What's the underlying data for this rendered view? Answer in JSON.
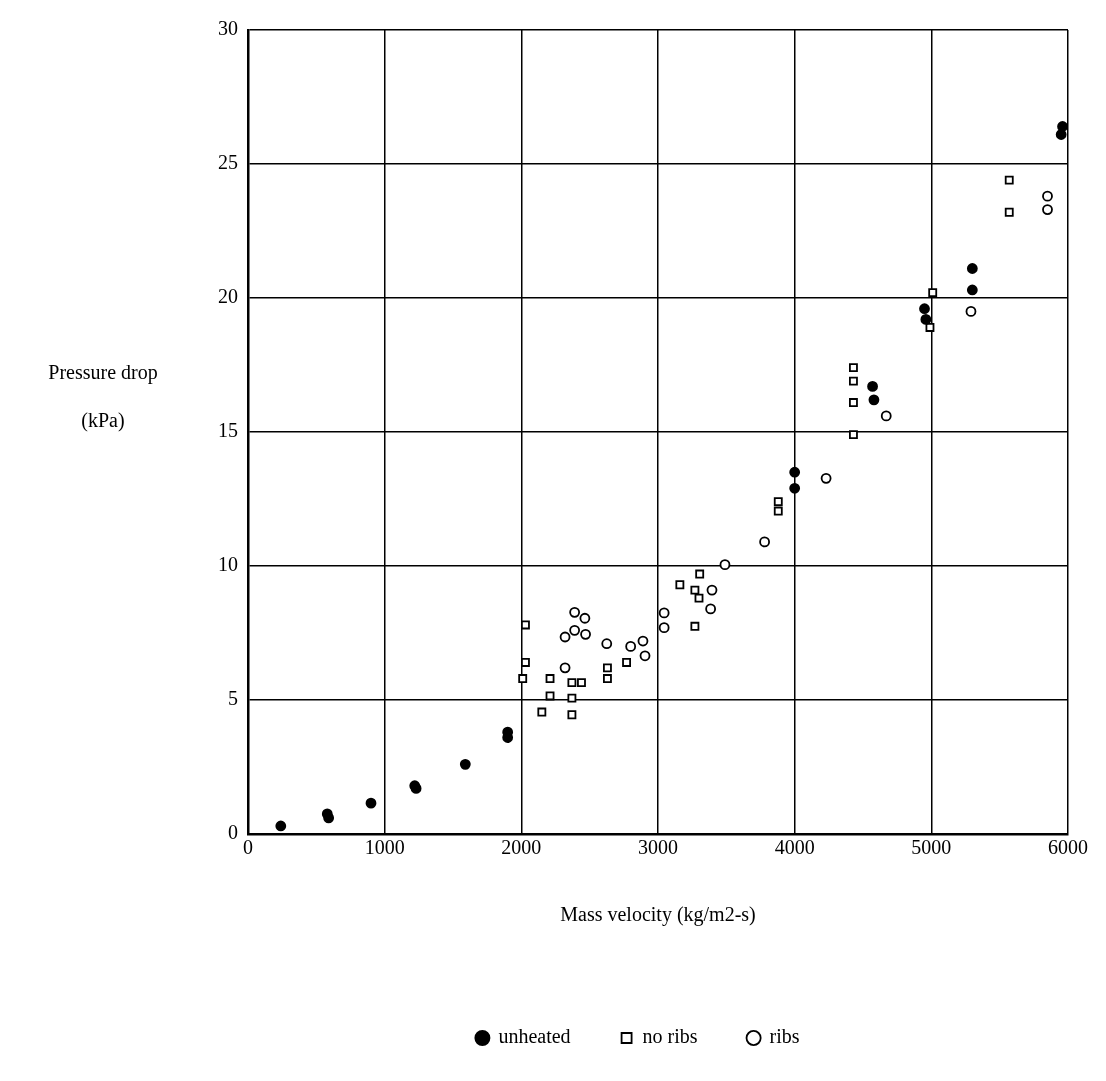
{
  "chart_data": {
    "type": "scatter",
    "xlabel": "Mass velocity (kg/m2-s)",
    "ylabel": "Pressure drop\n(kPa)",
    "xlim": [
      0,
      6000
    ],
    "xticks": [
      0,
      1000,
      2000,
      3000,
      4000,
      5000,
      6000
    ],
    "ylim": [
      0,
      30
    ],
    "yticks": [
      0,
      5,
      10,
      15,
      20,
      25,
      30
    ],
    "grid": true,
    "legend": "bottom",
    "series": [
      {
        "name": "unheated",
        "color": "#000000",
        "marker": "circle",
        "x": [
          240,
          580,
          590,
          900,
          1220,
          1230,
          1590,
          1900,
          1900,
          4000,
          4000,
          4570,
          4580,
          4950,
          4960,
          5300,
          5300,
          5960,
          5950
        ],
        "values": [
          0.3,
          0.75,
          0.6,
          1.15,
          1.8,
          1.7,
          2.6,
          3.8,
          3.6,
          13.5,
          12.9,
          16.7,
          16.2,
          19.6,
          19.2,
          21.1,
          20.3,
          26.4,
          26.1
        ]
      },
      {
        "name": "no ribs",
        "color": "#000000",
        "marker": "square",
        "x": [
          2030,
          2030,
          2010,
          2210,
          2210,
          2150,
          2370,
          2370,
          2440,
          2370,
          2630,
          2630,
          2770,
          3160,
          3305,
          3300,
          3270,
          3270,
          3880,
          3880,
          4430,
          4430,
          4430,
          4430,
          5010,
          4990,
          5570,
          5570
        ],
        "values": [
          7.8,
          6.4,
          5.8,
          5.8,
          5.15,
          4.55,
          5.65,
          5.07,
          5.65,
          4.45,
          6.2,
          5.8,
          6.4,
          9.3,
          9.7,
          8.8,
          7.75,
          9.1,
          12.05,
          12.4,
          17.4,
          16.9,
          16.1,
          14.9,
          20.2,
          18.9,
          24.4,
          23.2
        ]
      },
      {
        "name": "ribs",
        "color": "#000000",
        "marker": "circle",
        "x": [
          2390,
          2465,
          2390,
          2320,
          2470,
          2320,
          2625,
          2800,
          2890,
          2905,
          3045,
          3045,
          3395,
          3385,
          3490,
          3780,
          4230,
          4670,
          5290,
          5850,
          5850
        ],
        "values": [
          8.27,
          8.05,
          7.6,
          7.35,
          7.45,
          6.2,
          7.1,
          7.0,
          7.2,
          6.65,
          8.25,
          7.7,
          9.1,
          8.4,
          10.05,
          10.9,
          13.27,
          15.6,
          19.5,
          23.8,
          23.3
        ]
      }
    ]
  }
}
